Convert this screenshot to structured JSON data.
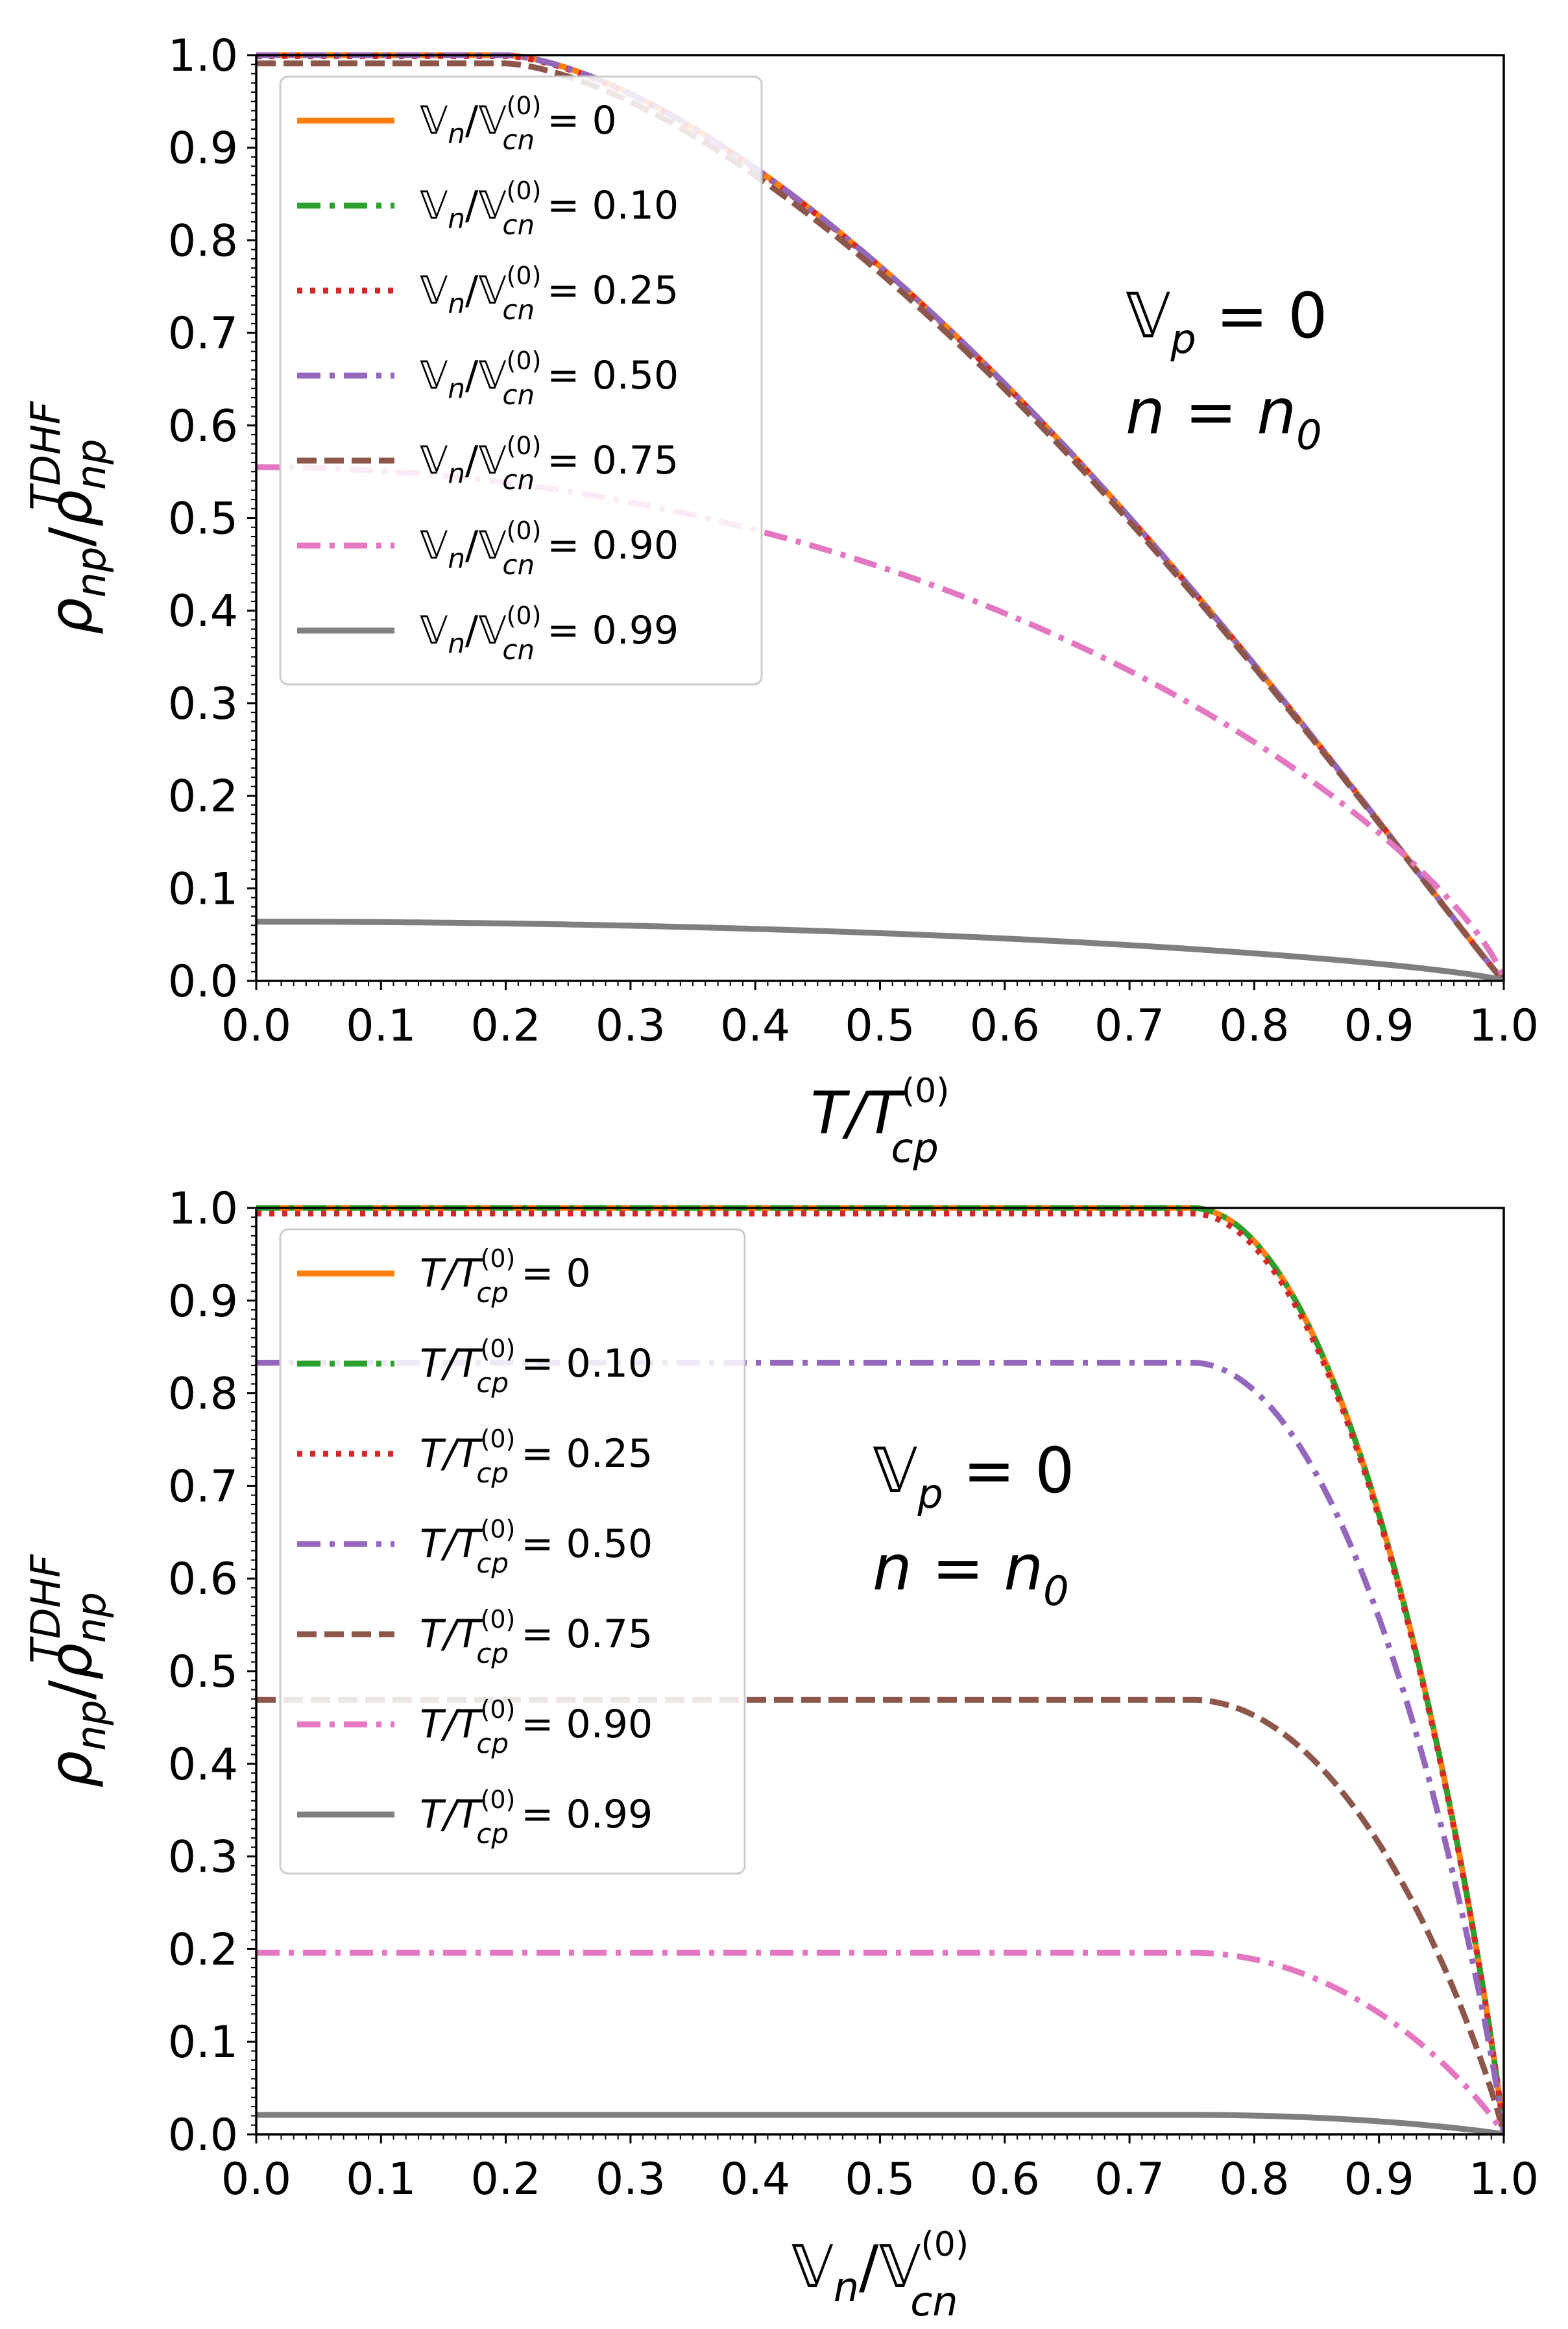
{
  "chart_data": [
    {
      "type": "line",
      "panel": "top",
      "xlabel": "T/T_cp^(0)",
      "xlabel_parts": {
        "main": "T/T",
        "sub": "cp",
        "sup": "(0)"
      },
      "ylabel": "ρ_np/ρ_np^TDHF",
      "ylabel_parts": {
        "a": "ρ",
        "a_sub": "np",
        "slash": "/",
        "b": "ρ",
        "b_sub": "np",
        "b_sup": "TDHF"
      },
      "xlim": [
        0,
        1
      ],
      "ylim": [
        0,
        1
      ],
      "xticks": [
        "0.0",
        "0.1",
        "0.2",
        "0.3",
        "0.4",
        "0.5",
        "0.6",
        "0.7",
        "0.8",
        "0.9",
        "1.0"
      ],
      "yticks": [
        "0.0",
        "0.1",
        "0.2",
        "0.3",
        "0.4",
        "0.5",
        "0.6",
        "0.7",
        "0.8",
        "0.9",
        "1.0"
      ],
      "legend_position": "top-left",
      "legend_var": {
        "main": "𝕍",
        "sub": "n",
        "slash": "/𝕍",
        "sub2": "cn",
        "sup": "(0)"
      },
      "annotations": [
        {
          "main": "𝕍",
          "sub": "p",
          "rest": " = 0"
        },
        {
          "main": "n = n",
          "sub": "0",
          "rest": ""
        }
      ],
      "series": [
        {
          "name": "0",
          "color": "#ff7f0e",
          "style": "solid",
          "amplitude": 1.0,
          "knee": 0.0,
          "shape": "bcs"
        },
        {
          "name": "0.10",
          "color": "#2ca02c",
          "style": "dashdot",
          "amplitude": 1.0,
          "knee": 0.0,
          "shape": "bcs"
        },
        {
          "name": "0.25",
          "color": "#d62728",
          "style": "dotted",
          "amplitude": 0.999,
          "knee": 0.0,
          "shape": "bcs"
        },
        {
          "name": "0.50",
          "color": "#9467bd",
          "style": "dashdot",
          "amplitude": 1.0,
          "knee": 0.0,
          "shape": "bcs"
        },
        {
          "name": "0.75",
          "color": "#8c564b",
          "style": "dashed",
          "amplitude": 0.991,
          "knee": 0.0,
          "shape": "bcs"
        },
        {
          "name": "0.90",
          "color": "#e377c2",
          "style": "dashdot",
          "amplitude": 0.555,
          "knee": 0.0,
          "shape": "soft"
        },
        {
          "name": "0.99",
          "color": "#7f7f7f",
          "style": "solid",
          "amplitude": 0.064,
          "knee": 0.0,
          "shape": "soft"
        }
      ]
    },
    {
      "type": "line",
      "panel": "bottom",
      "xlabel": "V_n/V_cn^(0)",
      "xlabel_parts": {
        "main": "𝕍",
        "sub": "n",
        "slash": "/𝕍",
        "sub2": "cn",
        "sup": "(0)"
      },
      "ylabel": "ρ_np/ρ_np^TDHF",
      "ylabel_parts": {
        "a": "ρ",
        "a_sub": "np",
        "slash": "/",
        "b": "ρ",
        "b_sub": "np",
        "b_sup": "TDHF"
      },
      "xlim": [
        0,
        1
      ],
      "ylim": [
        0,
        1
      ],
      "xticks": [
        "0.0",
        "0.1",
        "0.2",
        "0.3",
        "0.4",
        "0.5",
        "0.6",
        "0.7",
        "0.8",
        "0.9",
        "1.0"
      ],
      "yticks": [
        "0.0",
        "0.1",
        "0.2",
        "0.3",
        "0.4",
        "0.5",
        "0.6",
        "0.7",
        "0.8",
        "0.9",
        "1.0"
      ],
      "legend_position": "top-left",
      "legend_var": {
        "main": "T/T",
        "sub": "",
        "slash": "",
        "sub2": "cp",
        "sup": "(0)"
      },
      "annotations": [
        {
          "main": "𝕍",
          "sub": "p",
          "rest": " = 0"
        },
        {
          "main": "n = n",
          "sub": "0",
          "rest": ""
        }
      ],
      "series": [
        {
          "name": "0",
          "color": "#ff7f0e",
          "style": "solid",
          "amplitude": 1.0,
          "knee": 0.75,
          "shape": "knee"
        },
        {
          "name": "0.10",
          "color": "#2ca02c",
          "style": "dashdot",
          "amplitude": 1.0,
          "knee": 0.75,
          "shape": "knee"
        },
        {
          "name": "0.25",
          "color": "#d62728",
          "style": "dotted",
          "amplitude": 0.994,
          "knee": 0.75,
          "shape": "knee"
        },
        {
          "name": "0.50",
          "color": "#9467bd",
          "style": "dashdot",
          "amplitude": 0.833,
          "knee": 0.75,
          "shape": "knee"
        },
        {
          "name": "0.75",
          "color": "#8c564b",
          "style": "dashed",
          "amplitude": 0.469,
          "knee": 0.75,
          "shape": "knee"
        },
        {
          "name": "0.90",
          "color": "#e377c2",
          "style": "dashdot",
          "amplitude": 0.196,
          "knee": 0.75,
          "shape": "knee"
        },
        {
          "name": "0.99",
          "color": "#7f7f7f",
          "style": "solid",
          "amplitude": 0.021,
          "knee": 0.75,
          "shape": "knee"
        }
      ]
    }
  ]
}
